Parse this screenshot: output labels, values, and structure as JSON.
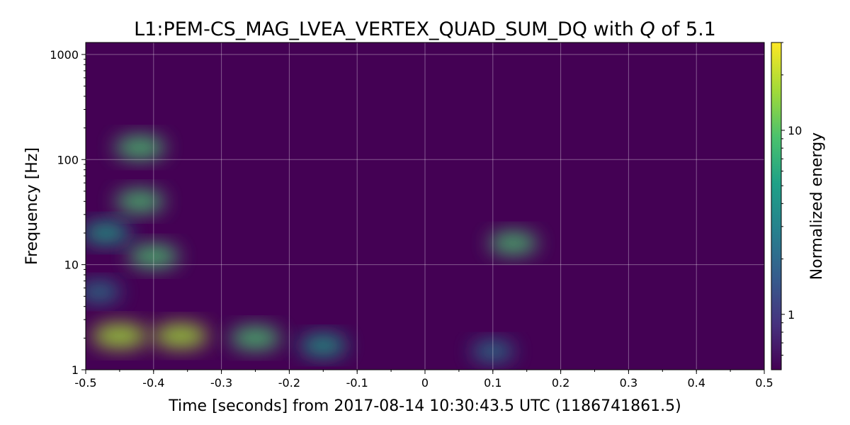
{
  "chart_data": {
    "type": "heatmap",
    "title_prefix": "L1:PEM-CS_MAG_LVEA_VERTEX_QUAD_SUM_DQ with ",
    "title_q": "Q",
    "title_suffix": " of 5.1",
    "xlabel": "Time [seconds] from 2017-08-14 10:30:43.5 UTC (1186741861.5)",
    "ylabel": "Frequency [Hz]",
    "xlim": [
      -0.5,
      0.5
    ],
    "ylim": [
      1,
      1300
    ],
    "yscale": "log",
    "x_ticks": [
      {
        "value": -0.5,
        "label": "-0.5"
      },
      {
        "value": -0.4,
        "label": "-0.4"
      },
      {
        "value": -0.3,
        "label": "-0.3"
      },
      {
        "value": -0.2,
        "label": "-0.2"
      },
      {
        "value": -0.1,
        "label": "-0.1"
      },
      {
        "value": 0.0,
        "label": "0"
      },
      {
        "value": 0.1,
        "label": "0.1"
      },
      {
        "value": 0.2,
        "label": "0.2"
      },
      {
        "value": 0.3,
        "label": "0.3"
      },
      {
        "value": 0.4,
        "label": "0.4"
      },
      {
        "value": 0.5,
        "label": "0.5"
      }
    ],
    "y_ticks": [
      {
        "value": 1,
        "label": "1"
      },
      {
        "value": 10,
        "label": "10"
      },
      {
        "value": 100,
        "label": "100"
      },
      {
        "value": 1000,
        "label": "1000"
      }
    ],
    "grid": true,
    "colormap": "viridis",
    "colorbar": {
      "label": "Normalized energy",
      "scale": "log",
      "range": [
        0.5,
        30
      ],
      "ticks": [
        {
          "value": 1,
          "label": "1"
        },
        {
          "value": 10,
          "label": "10"
        }
      ]
    },
    "features": [
      {
        "t": -0.45,
        "f": 2.1,
        "energy": 22
      },
      {
        "t": -0.36,
        "f": 2.1,
        "energy": 18
      },
      {
        "t": -0.25,
        "f": 2.0,
        "energy": 10
      },
      {
        "t": -0.15,
        "f": 1.7,
        "energy": 5
      },
      {
        "t": 0.1,
        "f": 1.5,
        "energy": 2.5
      },
      {
        "t": -0.4,
        "f": 12,
        "energy": 10
      },
      {
        "t": -0.47,
        "f": 20,
        "energy": 6
      },
      {
        "t": -0.42,
        "f": 40,
        "energy": 8
      },
      {
        "t": 0.13,
        "f": 16,
        "energy": 7
      },
      {
        "t": -0.42,
        "f": 130,
        "energy": 10
      },
      {
        "t": -0.48,
        "f": 5.5,
        "energy": 2.5
      }
    ]
  }
}
